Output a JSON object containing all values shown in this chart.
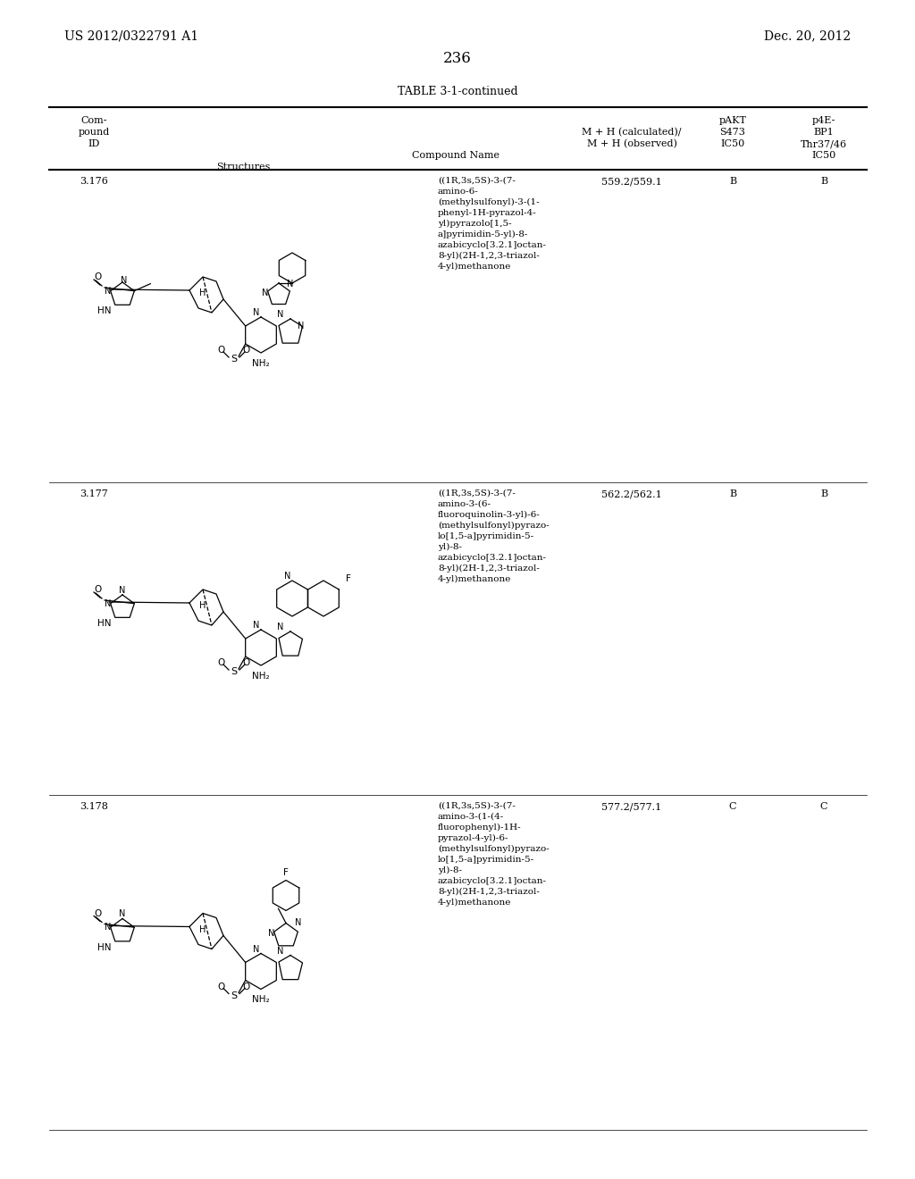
{
  "patent_number": "US 2012/0322791 A1",
  "date": "Dec. 20, 2012",
  "page_number": "236",
  "table_title": "TABLE 3-1-continued",
  "col_headers": [
    [
      "",
      "",
      "",
      "p4E-"
    ],
    [
      "",
      "",
      "pAKT",
      "BP1"
    ],
    [
      "",
      "M + H (calculated)/",
      "S473",
      "Thr37/46"
    ],
    [
      "Com-\npound\nID",
      "Structures",
      "Compound Name",
      "M + H (observed)",
      "IC50",
      "IC50"
    ]
  ],
  "col_header_row1": [
    "",
    "",
    "",
    "",
    "p4E-"
  ],
  "col_header_row2": [
    "",
    "",
    "",
    "pAKT",
    "BP1"
  ],
  "col_header_row3": [
    "Com-",
    "",
    "",
    "M + H (calculated)/",
    "S473",
    "Thr37/46"
  ],
  "col_header_row4": [
    "pound",
    "",
    "Compound Name",
    "M + H (observed)",
    "IC50",
    "IC50"
  ],
  "col_header_row5": [
    "ID",
    "Structures",
    "",
    "",
    "",
    ""
  ],
  "rows": [
    {
      "compound_id": "3.176",
      "compound_name": "((1R,3s,5S)-3-(7-\namino-6-\n(methylsulfonyl)-3-(1-\nphenyl-1H-pyrazol-4-\nyl)pyrazolo[1,5-\na]pyrimidin-5-yl)-8-\nazabicyclo[3.2.1]octan-\n8-yl)(2H-1,2,3-triazol-\n4-yl)methanone",
      "mh": "559.2/559.1",
      "pakt": "B",
      "p4ebp1": "B"
    },
    {
      "compound_id": "3.177",
      "compound_name": "((1R,3s,5S)-3-(7-\namino-3-(6-\nfluoroquinolin-3-yl)-6-\n(methylsulfonyl)pyrazo-\nlo[1,5-a]pyrimidin-5-\nyl)-8-\nazabicyclo[3.2.1]octan-\n8-yl)(2H-1,2,3-triazol-\n4-yl)methanone",
      "mh": "562.2/562.1",
      "pakt": "B",
      "p4ebp1": "B"
    },
    {
      "compound_id": "3.178",
      "compound_name": "((1R,3s,5S)-3-(7-\namino-3-(1-(4-\nfluorophenyl)-1H-\npyrazol-4-yl)-6-\n(methylsulfonyl)pyrazo-\nlo[1,5-a]pyrimidin-5-\nyl)-8-\nazabicyclo[3.2.1]octan-\n8-yl)(2H-1,2,3-triazol-\n4-yl)methanone",
      "mh": "577.2/577.1",
      "pakt": "C",
      "p4ebp1": "C"
    }
  ],
  "bg_color": "#ffffff",
  "text_color": "#000000",
  "font_size_header": 8,
  "font_size_body": 8,
  "font_size_page": 11,
  "font_size_table_title": 9
}
